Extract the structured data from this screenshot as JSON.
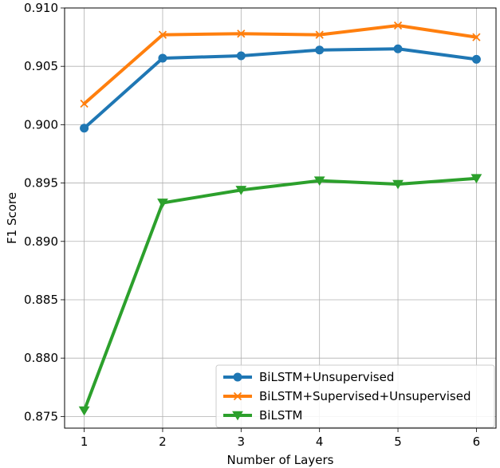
{
  "chart_data": {
    "type": "line",
    "xlabel": "Number of Layers",
    "ylabel": "F1 Score",
    "x": [
      1,
      2,
      3,
      4,
      5,
      6
    ],
    "xticks": [
      "1",
      "2",
      "3",
      "4",
      "5",
      "6"
    ],
    "xlim": [
      0.75,
      6.25
    ],
    "ylim": [
      0.874,
      0.91
    ],
    "yticks": [
      "0.875",
      "0.880",
      "0.885",
      "0.890",
      "0.895",
      "0.900",
      "0.905",
      "0.910"
    ],
    "grid": true,
    "legend_position": "lower-right",
    "series": [
      {
        "name": "BiLSTM+Unsupervised",
        "color": "#1f77b4",
        "marker": "circle",
        "values": [
          0.8997,
          0.9057,
          0.9059,
          0.9064,
          0.9065,
          0.9056
        ]
      },
      {
        "name": "BiLSTM+Supervised+Unsupervised",
        "color": "#ff7f0e",
        "marker": "x",
        "values": [
          0.9018,
          0.9077,
          0.9078,
          0.9077,
          0.9085,
          0.9075
        ]
      },
      {
        "name": "BiLSTM",
        "color": "#2ca02c",
        "marker": "triangle-down",
        "values": [
          0.8755,
          0.8933,
          0.8944,
          0.8952,
          0.8949,
          0.8954
        ]
      }
    ]
  }
}
